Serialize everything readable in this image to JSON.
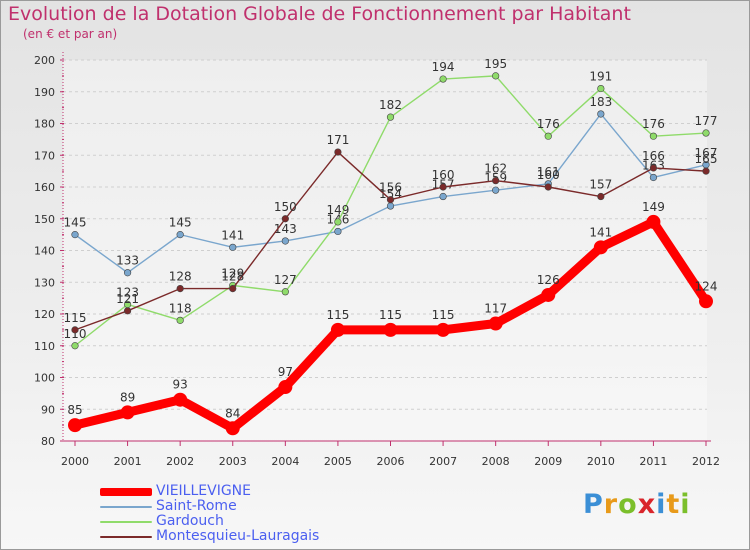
{
  "title": "Evolution de la Dotation Globale de Fonctionnement par Habitant",
  "subtitle": "(en € et par an)",
  "logo": {
    "letters": [
      "P",
      "r",
      "o",
      "x",
      "i",
      "t",
      "i"
    ],
    "colors": [
      "#3b8fd6",
      "#e89a1a",
      "#7bbf2b",
      "#d9252b",
      "#3b8fd6",
      "#e89a1a",
      "#7bbf2b"
    ]
  },
  "colors": {
    "title": "#c0306d",
    "axis": "#c0306d",
    "grid": "#cfcfcf",
    "legend_text": "#4b5ff0"
  },
  "chart_data": {
    "type": "line",
    "x": [
      "2000",
      "2001",
      "2002",
      "2003",
      "2004",
      "2005",
      "2006",
      "2007",
      "2008",
      "2009",
      "2010",
      "2011",
      "2012"
    ],
    "ylim": [
      80,
      200
    ],
    "yticks": [
      80,
      90,
      100,
      110,
      120,
      130,
      140,
      150,
      160,
      170,
      180,
      190,
      200
    ],
    "grid": "horizontal dashed",
    "legend_position": "bottom-left",
    "series": [
      {
        "name": "VIEILLEVIGNE",
        "color": "#ff0000",
        "values": [
          85,
          89,
          93,
          84,
          97,
          115,
          115,
          115,
          117,
          126,
          141,
          149,
          124
        ]
      },
      {
        "name": "Saint-Rome",
        "color": "#7aa6cd",
        "values": [
          145,
          133,
          145,
          141,
          143,
          146,
          154,
          157,
          159,
          161,
          183,
          163,
          167
        ]
      },
      {
        "name": "Gardouch",
        "color": "#8fdb6a",
        "values": [
          110,
          123,
          118,
          129,
          127,
          149,
          182,
          194,
          195,
          176,
          191,
          176,
          177
        ]
      },
      {
        "name": "Montesquieu-Lauragais",
        "color": "#7b2a2a",
        "values": [
          115,
          121,
          128,
          128,
          150,
          171,
          156,
          160,
          162,
          160,
          157,
          166,
          165
        ]
      }
    ]
  }
}
